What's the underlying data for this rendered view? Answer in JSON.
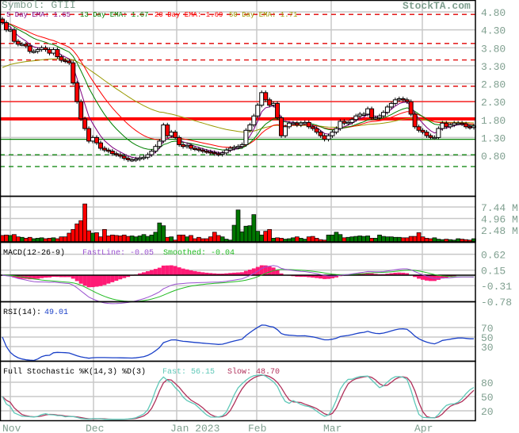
{
  "header": {
    "symbol_label": "Symbol: GTII",
    "brand": "StockTA.com"
  },
  "legend": {
    "ema5": "5 Day EMA: 1.65",
    "ema13": "13 Day EMA: 1.67",
    "ema20": "20 Day EMA: 1.69",
    "ema50": "50 Day EMA: 1.71"
  },
  "macd": {
    "title": "MACD(12-26-9)",
    "fast": "FastLine: -0.05",
    "smoothed": "Smoothed: -0.04"
  },
  "rsi": {
    "title": "RSI(14):",
    "value": "49.01"
  },
  "stoch": {
    "title": "Full Stochastic %K(14,3) %D(3)",
    "fast": "Fast: 56.15",
    "slow": "Slow: 48.70"
  },
  "colors": {
    "ema5": "#800080",
    "ema13": "#008000",
    "ema20": "#ff0000",
    "ema50": "#999900",
    "down": "#ff0000",
    "up": "#ffffff",
    "vol_up": "#007700",
    "vol_down": "#ff0000",
    "macd_fast": "#9a50d0",
    "macd_signal": "#22bb22",
    "macd_hist": "#ff1a75",
    "rsi": "#1a40c8",
    "stoch_fast": "#5fc8b8",
    "stoch_slow": "#b0305a",
    "axis": "#7f9f8f"
  },
  "chart_data": {
    "type": "candlestick",
    "x_labels": [
      "Nov",
      "Dec",
      "Jan 2023",
      "Feb",
      "Mar",
      "Apr"
    ],
    "price_ticks": [
      "4.80",
      "4.30",
      "3.80",
      "3.30",
      "2.80",
      "2.30",
      "1.80",
      "1.30",
      "0.80"
    ],
    "price_ylim": [
      -0.33,
      5.13
    ],
    "levels": {
      "resistance_dashed": [
        4.73,
        3.92,
        3.46,
        2.73
      ],
      "resistance_solid": [
        2.3
      ],
      "key_level": 1.82,
      "support_solid": [
        1.25
      ],
      "support_dashed": [
        0.82,
        0.49
      ]
    },
    "closes": [
      4.5,
      4.3,
      4.3,
      3.98,
      3.9,
      3.9,
      3.85,
      3.7,
      3.7,
      3.75,
      3.8,
      3.75,
      3.65,
      3.75,
      3.55,
      3.45,
      3.43,
      3.38,
      2.82,
      2.3,
      1.82,
      1.55,
      1.2,
      1.3,
      1.15,
      1.0,
      0.95,
      0.92,
      0.85,
      0.82,
      0.78,
      0.72,
      0.68,
      0.68,
      0.7,
      0.73,
      0.75,
      0.82,
      0.92,
      1.05,
      1.2,
      1.65,
      1.35,
      1.45,
      1.3,
      1.1,
      1.05,
      1.08,
      1.0,
      0.98,
      0.95,
      0.92,
      0.9,
      0.88,
      0.85,
      0.83,
      0.87,
      0.95,
      1.0,
      1.03,
      1.05,
      1.1,
      1.5,
      1.65,
      1.9,
      2.2,
      2.55,
      2.35,
      2.2,
      2.25,
      1.85,
      1.35,
      1.6,
      1.7,
      1.7,
      1.65,
      1.7,
      1.72,
      1.6,
      1.55,
      1.45,
      1.35,
      1.25,
      1.35,
      1.45,
      1.55,
      1.75,
      1.7,
      1.72,
      1.8,
      1.9,
      1.95,
      1.95,
      2.1,
      1.85,
      1.85,
      1.9,
      2.0,
      2.15,
      2.25,
      2.35,
      2.38,
      2.35,
      2.3,
      1.95,
      1.6,
      1.5,
      1.45,
      1.35,
      1.3,
      1.3,
      1.55,
      1.7,
      1.6,
      1.65,
      1.7,
      1.7,
      1.68,
      1.6,
      1.58,
      1.62
    ],
    "volume_ticks": [
      "7.44 M",
      "4.96 M",
      "2.48 M"
    ],
    "volume_millions": [
      1.3,
      1.4,
      1.3,
      1.5,
      1.0,
      0.9,
      0.7,
      0.9,
      0.6,
      0.7,
      0.8,
      0.6,
      0.7,
      0.8,
      0.6,
      1.0,
      1.0,
      1.8,
      2.6,
      3.8,
      4.5,
      8.1,
      2.3,
      1.8,
      1.9,
      1.0,
      2.6,
      1.2,
      1.4,
      1.3,
      1.2,
      1.4,
      1.1,
      1.2,
      1.0,
      1.2,
      1.5,
      1.1,
      1.4,
      2.0,
      4.0,
      3.4,
      0.9,
      1.0,
      0.3,
      1.4,
      1.4,
      1.0,
      1.3,
      0.6,
      0.9,
      0.6,
      0.6,
      1.0,
      2.0,
      1.3,
      1.0,
      0.5,
      0.3,
      3.5,
      6.8,
      2.1,
      3.3,
      3.4,
      5.8,
      2.2,
      1.4,
      2.2,
      2.6,
      0.7,
      0.8,
      0.7,
      0.5,
      0.6,
      0.8,
      1.0,
      0.7,
      0.5,
      1.0,
      1.1,
      0.7,
      0.4,
      0.3,
      1.4,
      1.4,
      2.0,
      1.5,
      0.8,
      0.9,
      1.0,
      1.1,
      1.2,
      1.1,
      1.2,
      0.7,
      0.7,
      1.4,
      1.1,
      1.0,
      1.0,
      0.9,
      0.9,
      0.8,
      0.8,
      1.1,
      1.1,
      1.9,
      1.0,
      0.7,
      0.6,
      0.8,
      0.5,
      0.4,
      0.5,
      0.4,
      0.3,
      0.6,
      0.5,
      0.4,
      0.3,
      0.6
    ],
    "macd_ticks": [
      "0.62",
      "0.15",
      "-0.31",
      "-0.78"
    ],
    "rsi_ticks": [
      "70",
      "50",
      "30"
    ],
    "stoch_ticks": [
      "80",
      "50",
      "20"
    ]
  }
}
